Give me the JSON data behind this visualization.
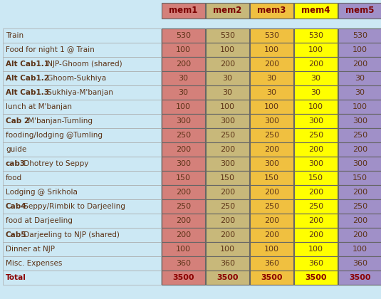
{
  "columns": [
    "mem1",
    "mem2",
    "mem3",
    "mem4",
    "mem5"
  ],
  "rows": [
    [
      "Train",
      530,
      530,
      530,
      530,
      530
    ],
    [
      "Food for night 1 @ Train",
      100,
      100,
      100,
      100,
      100
    ],
    [
      "Alt Cab1.1 NJP-Ghoom (shared)",
      200,
      200,
      200,
      200,
      200
    ],
    [
      "Alt Cab1.2 Ghoom-Sukhiya",
      30,
      30,
      30,
      30,
      30
    ],
    [
      "Alt Cab1.3 Sukhiya-M'banjan",
      30,
      30,
      30,
      30,
      30
    ],
    [
      "lunch at M'banjan",
      100,
      100,
      100,
      100,
      100
    ],
    [
      "Cab 2 M'banjan-Tumling",
      300,
      300,
      300,
      300,
      300
    ],
    [
      "fooding/lodging @Tumling",
      250,
      250,
      250,
      250,
      250
    ],
    [
      "guide",
      200,
      200,
      200,
      200,
      200
    ],
    [
      "cab3 Dhotrey to Seppy",
      300,
      300,
      300,
      300,
      300
    ],
    [
      "food",
      150,
      150,
      150,
      150,
      150
    ],
    [
      "Lodging @ Srikhola",
      200,
      200,
      200,
      200,
      200
    ],
    [
      "Cab4 Seppy/Rimbik to Darjeeling",
      250,
      250,
      250,
      250,
      250
    ],
    [
      "food at Darjeeling",
      200,
      200,
      200,
      200,
      200
    ],
    [
      "Cab5 Darjeeling to NJP (shared)",
      200,
      200,
      200,
      200,
      200
    ],
    [
      "Dinner at NJP",
      100,
      100,
      100,
      100,
      100
    ],
    [
      "Misc. Expenses",
      360,
      360,
      360,
      360,
      360
    ],
    [
      "Total",
      3500,
      3500,
      3500,
      3500,
      3500
    ]
  ],
  "header_colors": [
    "#d4807a",
    "#c8b87a",
    "#f0c040",
    "#ffff00",
    "#a090c8"
  ],
  "cell_colors": [
    "#d4807a",
    "#c8b87a",
    "#f0c040",
    "#ffff00",
    "#a090c8"
  ],
  "bg_color": "#cce8f4",
  "label_bg": "#cce8f4",
  "header_text_color": "#7a0000",
  "data_text_color": "#5c3317",
  "total_text_color": "#8b0000",
  "bold_label_prefixes": {
    "2": [
      "Alt Cab1.1",
      " NJP-Ghoom (shared)"
    ],
    "3": [
      "Alt Cab1.2",
      " Ghoom-Sukhiya"
    ],
    "4": [
      "Alt Cab1.3",
      " Sukhiya-M'banjan"
    ],
    "6": [
      "Cab 2",
      " M'banjan-Tumling"
    ],
    "9": [
      "cab3",
      " Dhotrey to Seppy"
    ],
    "12": [
      "Cab4",
      " Seppy/Rimbik to Darjeeling"
    ],
    "14": [
      "Cab5",
      " Darjeeling to NJP (shared)"
    ]
  },
  "total_row_idx": 17
}
